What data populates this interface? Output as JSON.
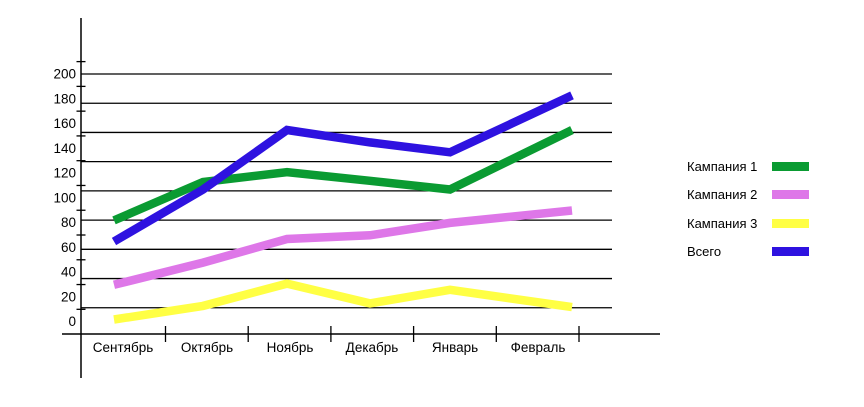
{
  "chart_data": {
    "type": "line",
    "title": "",
    "categories": [
      "Сентябрь",
      "Октябрь",
      "Ноябрь",
      "Декабрь",
      "Январь",
      "Февраль"
    ],
    "series": [
      {
        "name": "Кампания 1",
        "color": "#0a9b32",
        "values": [
          82,
          113,
          121,
          114,
          107,
          155
        ]
      },
      {
        "name": "Кампания 2",
        "color": "#de77e8",
        "values": [
          30,
          48,
          67,
          70,
          80,
          90
        ]
      },
      {
        "name": "Кампания 3",
        "color": "#ffff44",
        "values": [
          2,
          13,
          31,
          15,
          26,
          12
        ]
      },
      {
        "name": "Всего",
        "color": "#2e12e0",
        "values": [
          65,
          107,
          155,
          145,
          137,
          183
        ]
      }
    ],
    "y_axis": {
      "min": 0,
      "max": 200,
      "step": 20,
      "tick_labels": [
        "0",
        "20",
        "40",
        "60",
        "80",
        "100",
        "120",
        "140",
        "160",
        "180",
        "200"
      ]
    },
    "x_axis": {
      "tick_labels": [
        "Сентябрь",
        "Октябрь",
        "Ноябрь",
        "Декабрь",
        "Январь",
        "Февраль"
      ]
    },
    "legend": {
      "position": "right"
    },
    "grid": true,
    "background": "#ffffff",
    "axis_color": "#000000"
  }
}
